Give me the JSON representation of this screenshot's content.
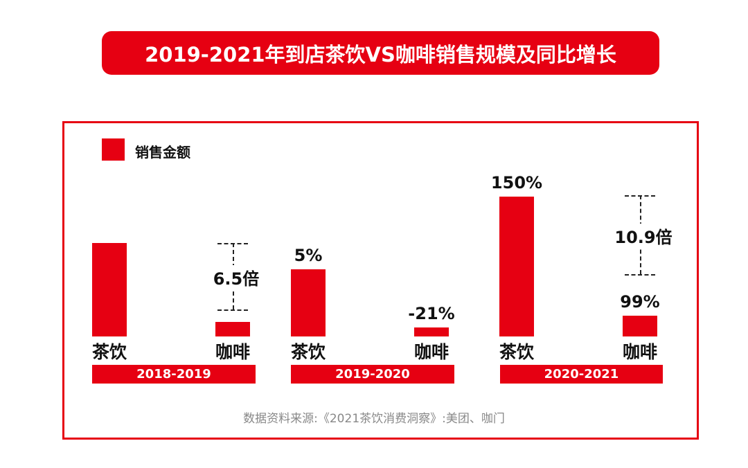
{
  "title": "2019-2021年到店茶饮VS咖啡销售规模及同比增长",
  "source": "数据资料来源:《2021茶饮消费洞察》:美团、咖门",
  "colors": {
    "bar": "#e60012",
    "text": "#111111",
    "source": "#888888"
  },
  "chart_data": {
    "type": "bar",
    "title": "2019-2021年到店茶饮VS咖啡销售规模及同比增长",
    "legend": [
      "销售金额"
    ],
    "legend_position": "top-left",
    "groups": [
      {
        "period": "2018-2019",
        "multiple_label": "6.5倍",
        "bars": [
          {
            "category": "茶饮",
            "relative_value": 135,
            "label": ""
          },
          {
            "category": "咖啡",
            "relative_value": 21,
            "label": ""
          }
        ]
      },
      {
        "period": "2019-2020",
        "multiple_label": "",
        "bars": [
          {
            "category": "茶饮",
            "relative_value": 97,
            "label": "5%"
          },
          {
            "category": "咖啡",
            "relative_value": 13,
            "label": "-21%"
          }
        ]
      },
      {
        "period": "2020-2021",
        "multiple_label": "10.9倍",
        "bars": [
          {
            "category": "茶饮",
            "relative_value": 202,
            "label": "150%"
          },
          {
            "category": "咖啡",
            "relative_value": 30,
            "label": "99%"
          }
        ]
      }
    ]
  }
}
